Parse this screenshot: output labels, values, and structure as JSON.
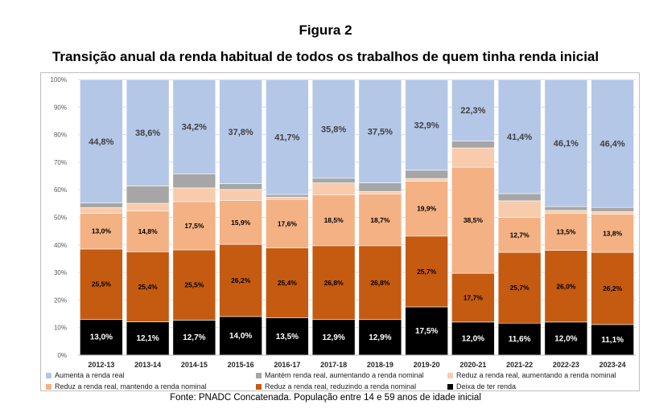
{
  "header": {
    "figure_label": "Figura 2",
    "title": "Transição anual da renda habitual de todos os trabalhos de quem tinha renda inicial"
  },
  "source": "Fonte: PNADC Concatenada. População entre 14 e 59 anos de idade inicial",
  "chart_data": {
    "type": "bar",
    "stacked": true,
    "normalized": true,
    "categories": [
      "2012-13",
      "2013-14",
      "2014-15",
      "2015-16",
      "2016-17",
      "2017-18",
      "2018-19",
      "2019-20",
      "2020-21",
      "2021-22",
      "2022-23",
      "2023-24"
    ],
    "ylim": [
      0,
      100
    ],
    "ytick_labels": [
      "0%",
      "10%",
      "20%",
      "30%",
      "40%",
      "50%",
      "60%",
      "70%",
      "80%",
      "90%",
      "100%"
    ],
    "grid": true,
    "legend_position": "bottom",
    "series": [
      {
        "name": "Deixa de ter renda",
        "color": "#000000",
        "label_color": "#ffffff",
        "values": [
          13.0,
          12.1,
          12.7,
          14.0,
          13.5,
          12.9,
          12.9,
          17.5,
          12.0,
          11.6,
          12.0,
          11.1
        ],
        "labels": [
          "13,0%",
          "12,1%",
          "12,7%",
          "14,0%",
          "13,5%",
          "12,9%",
          "12,9%",
          "17,5%",
          "12,0%",
          "11,6%",
          "12,0%",
          "11,1%"
        ]
      },
      {
        "name": "Reduz a renda real, reduzindo a renda nominal",
        "color": "#c55a11",
        "label_color": "#000000",
        "values": [
          25.5,
          25.4,
          25.5,
          26.2,
          25.4,
          26.8,
          26.8,
          25.7,
          17.7,
          25.7,
          26.0,
          26.2
        ],
        "labels": [
          "25,5%",
          "25,4%",
          "25,5%",
          "26,2%",
          "25,4%",
          "26,8%",
          "26,8%",
          "25,7%",
          "17,7%",
          "25,7%",
          "26,0%",
          "26,2%"
        ]
      },
      {
        "name": "Reduz a renda real, mantendo a renda nominal",
        "color": "#f4b183",
        "label_color": "#000000",
        "values": [
          13.0,
          14.8,
          17.5,
          15.9,
          17.6,
          18.5,
          18.7,
          19.9,
          38.5,
          12.7,
          13.5,
          13.8
        ],
        "labels": [
          "13,0%",
          "14,8%",
          "17,5%",
          "15,9%",
          "17,6%",
          "18,5%",
          "18,7%",
          "19,9%",
          "38,5%",
          "12,7%",
          "13,5%",
          "13,8%"
        ]
      },
      {
        "name": "Reduz a renda real, aumentando a renda nominal",
        "color": "#f8cbad",
        "label_color": "#000000",
        "values": [
          2.0,
          2.8,
          5.0,
          4.0,
          0.8,
          4.3,
          1.0,
          1.0,
          7.0,
          6.0,
          1.0,
          1.0
        ],
        "labels": [
          "",
          "",
          "",
          "",
          "",
          "",
          "",
          "",
          "",
          "",
          "",
          ""
        ]
      },
      {
        "name": "Mantém renda real, aumentando a renda nominal",
        "color": "#a6a6a6",
        "label_color": "#000000",
        "values": [
          1.7,
          6.3,
          5.1,
          2.1,
          1.0,
          1.7,
          3.1,
          3.0,
          2.5,
          2.6,
          1.4,
          1.5
        ],
        "labels": [
          "",
          "",
          "",
          "",
          "",
          "",
          "",
          "",
          "",
          "",
          "",
          ""
        ]
      },
      {
        "name": "Aumenta a renda real",
        "color": "#b4c7e7",
        "label_color": "#404040",
        "values": [
          44.8,
          38.6,
          34.2,
          37.8,
          41.7,
          35.8,
          37.5,
          32.9,
          22.3,
          41.4,
          46.1,
          46.4
        ],
        "labels": [
          "44,8%",
          "38,6%",
          "34,2%",
          "37,8%",
          "41,7%",
          "35,8%",
          "37,5%",
          "32,9%",
          "22,3%",
          "41,4%",
          "46,1%",
          "46,4%"
        ]
      }
    ],
    "legend_order": [
      "Aumenta a renda real",
      "Mantém renda real, aumentando a renda nominal",
      "Reduz a renda real, aumentando a renda nominal",
      "Reduz a renda real, mantendo a renda nominal",
      "Reduz a renda real, reduzindo a renda nominal",
      "Deixa de ter renda"
    ]
  }
}
